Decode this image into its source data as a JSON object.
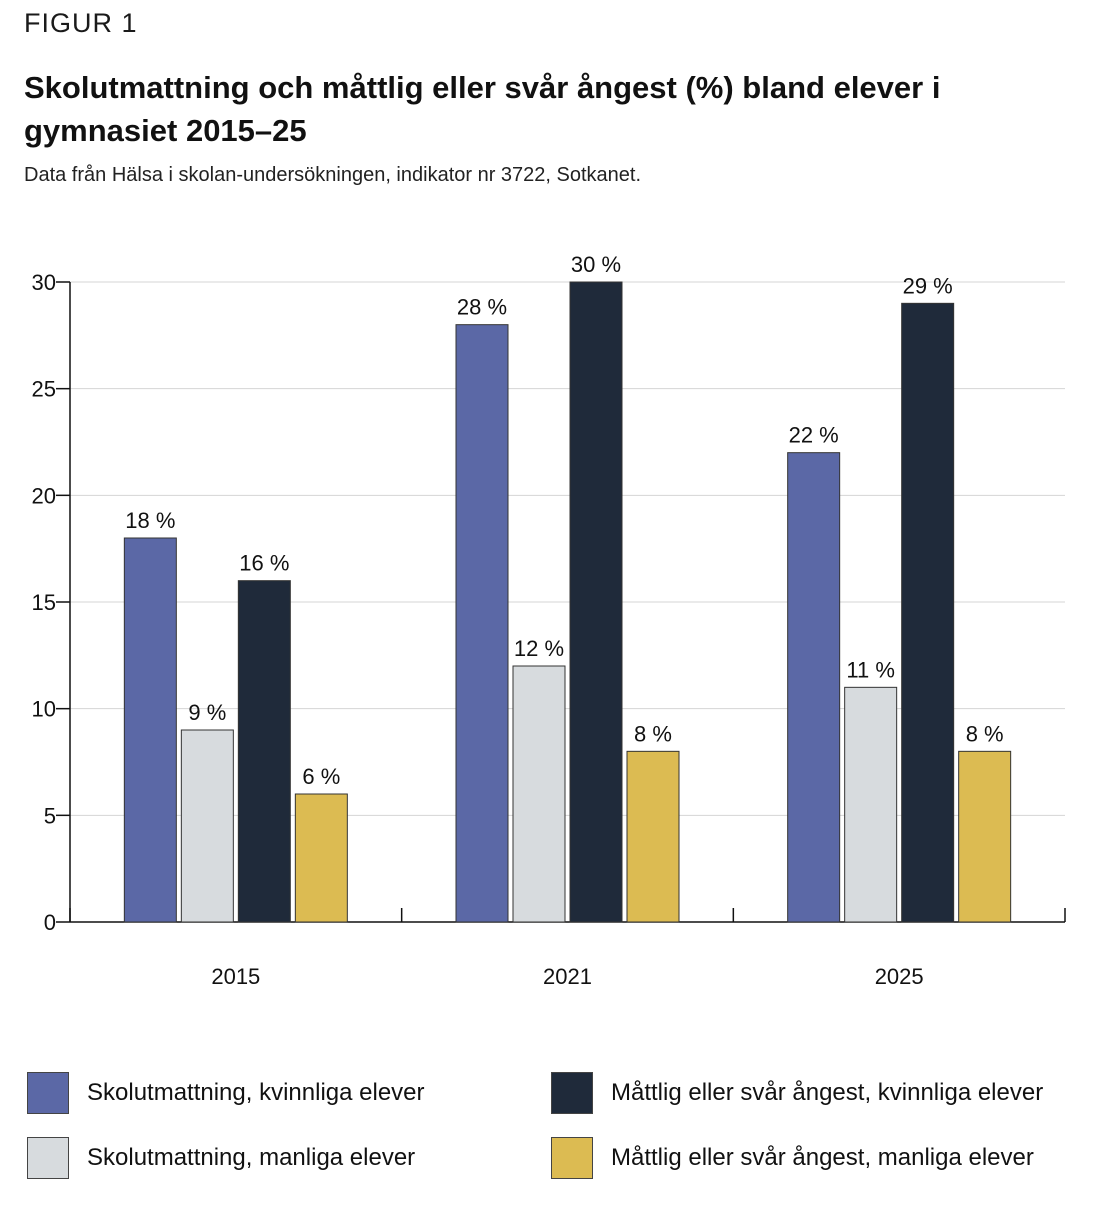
{
  "figure_label": "FIGUR 1",
  "title": "Skolutmattning och måttlig eller svår ångest (%) bland elever i gymnasiet 2015–25",
  "subtitle": "Data från Hälsa i skolan-undersökningen, indikator nr 3722, Sotkanet.",
  "chart_data": {
    "type": "bar",
    "title": "Skolutmattning och måttlig eller svår ångest (%) bland elever i gymnasiet 2015–25",
    "xlabel": "",
    "ylabel": "",
    "categories": [
      "2015",
      "2021",
      "2025"
    ],
    "ylim": [
      0,
      30
    ],
    "yticks": [
      0,
      5,
      10,
      15,
      20,
      25,
      30
    ],
    "grid": true,
    "legend_position": "bottom",
    "value_suffix": " %",
    "series": [
      {
        "name": "Skolutmattning, kvinnliga elever",
        "color": "#5b68a6",
        "values": [
          18,
          28,
          22
        ]
      },
      {
        "name": "Skolutmattning, manliga elever",
        "color": "#d7dbde",
        "values": [
          9,
          12,
          11
        ]
      },
      {
        "name": "Måttlig eller svår ångest, kvinnliga elever",
        "color": "#1f2a3a",
        "values": [
          16,
          30,
          29
        ]
      },
      {
        "name": "Måttlig eller svår ångest, manliga elever",
        "color": "#dcbb52",
        "values": [
          6,
          8,
          8
        ]
      }
    ]
  }
}
